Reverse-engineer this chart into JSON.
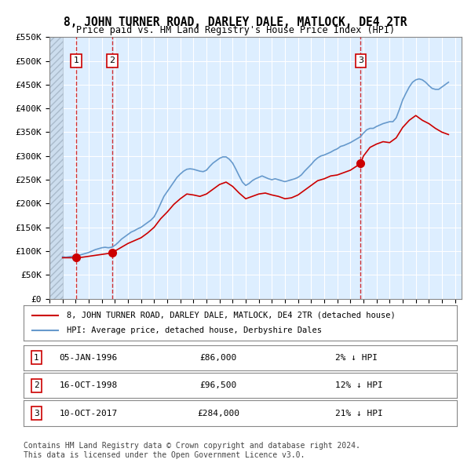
{
  "title": "8, JOHN TURNER ROAD, DARLEY DALE, MATLOCK, DE4 2TR",
  "subtitle": "Price paid vs. HM Land Registry's House Price Index (HPI)",
  "ylabel": "",
  "xlabel": "",
  "ylim": [
    0,
    550000
  ],
  "yticks": [
    0,
    50000,
    100000,
    150000,
    200000,
    250000,
    300000,
    350000,
    400000,
    450000,
    500000,
    550000
  ],
  "ytick_labels": [
    "£0",
    "£50K",
    "£100K",
    "£150K",
    "£200K",
    "£250K",
    "£300K",
    "£350K",
    "£400K",
    "£450K",
    "£500K",
    "£550K"
  ],
  "xlim_start": 1994.0,
  "xlim_end": 2025.5,
  "hpi_color": "#6699cc",
  "price_color": "#cc0000",
  "transaction_color": "#cc0000",
  "bg_color": "#ddeeff",
  "hatch_color": "#bbccdd",
  "transactions": [
    {
      "num": 1,
      "date": "05-JAN-1996",
      "year": 1996.03,
      "price": 86000,
      "pct": "2% ↓ HPI"
    },
    {
      "num": 2,
      "date": "16-OCT-1998",
      "year": 1998.79,
      "price": 96500,
      "pct": "12% ↓ HPI"
    },
    {
      "num": 3,
      "date": "10-OCT-2017",
      "year": 2017.78,
      "price": 284000,
      "pct": "21% ↓ HPI"
    }
  ],
  "legend_entries": [
    "8, JOHN TURNER ROAD, DARLEY DALE, MATLOCK, DE4 2TR (detached house)",
    "HPI: Average price, detached house, Derbyshire Dales"
  ],
  "footer": "Contains HM Land Registry data © Crown copyright and database right 2024.\nThis data is licensed under the Open Government Licence v3.0.",
  "hpi_data_x": [
    1995.0,
    1995.25,
    1995.5,
    1995.75,
    1996.0,
    1996.25,
    1996.5,
    1996.75,
    1997.0,
    1997.25,
    1997.5,
    1997.75,
    1998.0,
    1998.25,
    1998.5,
    1998.75,
    1999.0,
    1999.25,
    1999.5,
    1999.75,
    2000.0,
    2000.25,
    2000.5,
    2000.75,
    2001.0,
    2001.25,
    2001.5,
    2001.75,
    2002.0,
    2002.25,
    2002.5,
    2002.75,
    2003.0,
    2003.25,
    2003.5,
    2003.75,
    2004.0,
    2004.25,
    2004.5,
    2004.75,
    2005.0,
    2005.25,
    2005.5,
    2005.75,
    2006.0,
    2006.25,
    2006.5,
    2006.75,
    2007.0,
    2007.25,
    2007.5,
    2007.75,
    2008.0,
    2008.25,
    2008.5,
    2008.75,
    2009.0,
    2009.25,
    2009.5,
    2009.75,
    2010.0,
    2010.25,
    2010.5,
    2010.75,
    2011.0,
    2011.25,
    2011.5,
    2011.75,
    2012.0,
    2012.25,
    2012.5,
    2012.75,
    2013.0,
    2013.25,
    2013.5,
    2013.75,
    2014.0,
    2014.25,
    2014.5,
    2014.75,
    2015.0,
    2015.25,
    2015.5,
    2015.75,
    2016.0,
    2016.25,
    2016.5,
    2016.75,
    2017.0,
    2017.25,
    2017.5,
    2017.75,
    2018.0,
    2018.25,
    2018.5,
    2018.75,
    2019.0,
    2019.25,
    2019.5,
    2019.75,
    2020.0,
    2020.25,
    2020.5,
    2020.75,
    2021.0,
    2021.25,
    2021.5,
    2021.75,
    2022.0,
    2022.25,
    2022.5,
    2022.75,
    2023.0,
    2023.25,
    2023.5,
    2023.75,
    2024.0,
    2024.25,
    2024.5
  ],
  "hpi_data_y": [
    88000,
    87000,
    88000,
    89000,
    90000,
    91000,
    93000,
    95000,
    97000,
    100000,
    103000,
    105000,
    107000,
    108000,
    107000,
    108000,
    112000,
    118000,
    125000,
    130000,
    135000,
    140000,
    143000,
    147000,
    150000,
    155000,
    160000,
    165000,
    172000,
    185000,
    200000,
    215000,
    225000,
    235000,
    245000,
    255000,
    262000,
    268000,
    272000,
    273000,
    272000,
    270000,
    268000,
    267000,
    270000,
    278000,
    285000,
    290000,
    295000,
    298000,
    298000,
    293000,
    285000,
    272000,
    258000,
    245000,
    238000,
    242000,
    248000,
    252000,
    255000,
    258000,
    255000,
    252000,
    250000,
    252000,
    250000,
    248000,
    246000,
    248000,
    250000,
    252000,
    255000,
    260000,
    268000,
    275000,
    282000,
    290000,
    296000,
    300000,
    302000,
    305000,
    308000,
    312000,
    315000,
    320000,
    322000,
    325000,
    328000,
    332000,
    336000,
    340000,
    348000,
    355000,
    358000,
    358000,
    362000,
    365000,
    368000,
    370000,
    372000,
    372000,
    380000,
    398000,
    418000,
    432000,
    445000,
    455000,
    460000,
    462000,
    460000,
    455000,
    448000,
    442000,
    440000,
    440000,
    445000,
    450000,
    455000
  ],
  "price_line_x": [
    1995.0,
    1996.03,
    1996.5,
    1997.0,
    1997.5,
    1998.0,
    1998.5,
    1998.79,
    1999.0,
    1999.5,
    2000.0,
    2000.5,
    2001.0,
    2001.5,
    2002.0,
    2002.5,
    2003.0,
    2003.5,
    2004.0,
    2004.5,
    2005.0,
    2005.5,
    2006.0,
    2006.5,
    2007.0,
    2007.5,
    2008.0,
    2008.5,
    2009.0,
    2009.5,
    2010.0,
    2010.5,
    2011.0,
    2011.5,
    2012.0,
    2012.5,
    2013.0,
    2013.5,
    2014.0,
    2014.5,
    2015.0,
    2015.5,
    2016.0,
    2016.5,
    2017.0,
    2017.78,
    2018.0,
    2018.5,
    2019.0,
    2019.5,
    2020.0,
    2020.5,
    2021.0,
    2021.5,
    2022.0,
    2022.5,
    2023.0,
    2023.5,
    2024.0,
    2024.5
  ],
  "price_line_y": [
    86000,
    86000,
    87000,
    89000,
    91000,
    93000,
    95000,
    96500,
    100000,
    108000,
    116000,
    122000,
    128000,
    138000,
    150000,
    168000,
    182000,
    198000,
    210000,
    220000,
    218000,
    215000,
    220000,
    230000,
    240000,
    245000,
    236000,
    222000,
    210000,
    215000,
    220000,
    222000,
    218000,
    215000,
    210000,
    212000,
    218000,
    228000,
    238000,
    248000,
    252000,
    258000,
    260000,
    265000,
    270000,
    284000,
    300000,
    318000,
    325000,
    330000,
    328000,
    338000,
    360000,
    375000,
    385000,
    375000,
    368000,
    358000,
    350000,
    345000
  ],
  "hatch_end_year": 1995.0
}
